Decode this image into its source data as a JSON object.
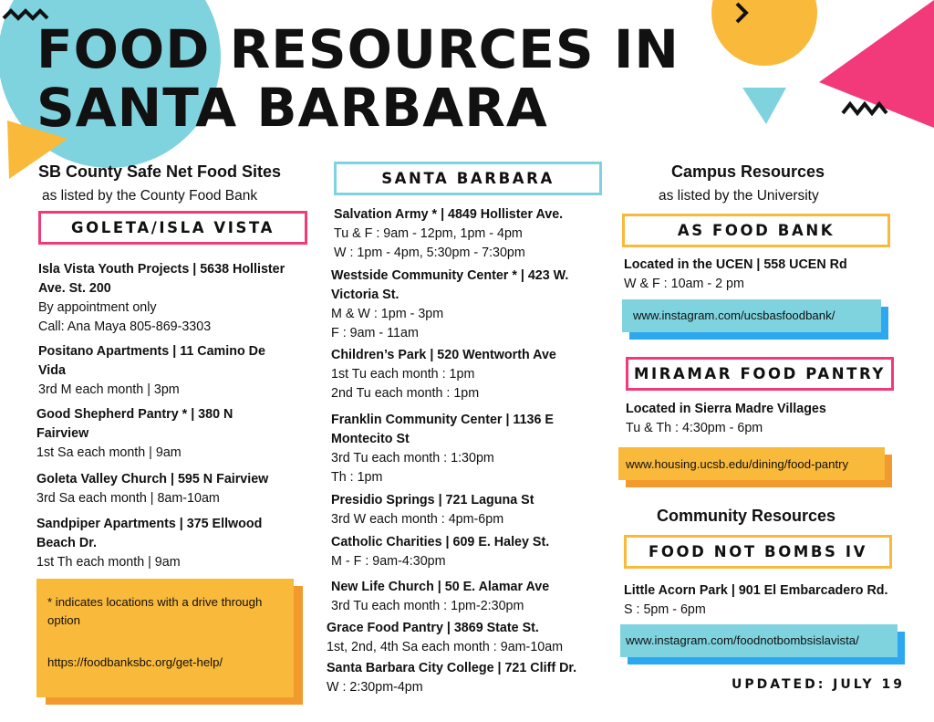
{
  "title": {
    "line1": "FOOD RESOURCES IN",
    "line2": "SANTA BARBARA"
  },
  "colors": {
    "pink": "#F2397A",
    "teal": "#7FD3DF",
    "gold": "#F9B93A",
    "blue": "#2BA8F0"
  },
  "left": {
    "heading": "SB County Safe Net Food Sites",
    "subheading": "as listed by the County Food Bank",
    "box": "GOLETA/ISLA VISTA",
    "entries": [
      {
        "name": "Isla Vista Youth Projects | 5638 Hollister Ave. St. 200",
        "l1": "By appointment only",
        "l2": "Call: Ana Maya 805-869-3303"
      },
      {
        "name": "Positano Apartments | 11 Camino De Vida",
        "l1": "3rd M each month | 3pm"
      },
      {
        "name": "Good Shepherd Pantry * | 380 N Fairview",
        "l1": "1st Sa each month | 9am"
      },
      {
        "name": "Goleta Valley Church | 595 N Fairview",
        "l1": "3rd Sa each month | 8am-10am"
      },
      {
        "name": "Sandpiper Apartments | 375 Ellwood Beach Dr.",
        "l1": "1st Th each month | 9am"
      }
    ],
    "note": "* indicates locations with a drive through option",
    "link": "https://foodbanksbc.org/get-help/"
  },
  "middle": {
    "box": "SANTA BARBARA",
    "entries": [
      {
        "name": "Salvation Army * | 4849 Hollister Ave.",
        "l1": "Tu & F : 9am - 12pm, 1pm - 4pm",
        "l2": "W : 1pm - 4pm, 5:30pm - 7:30pm"
      },
      {
        "name": "Westside Community Center * | 423 W. Victoria St.",
        "l1": "M & W : 1pm - 3pm",
        "l2": "F : 9am - 11am"
      },
      {
        "name": "Children’s Park | 520 Wentworth Ave",
        "l1": "1st Tu each month : 1pm",
        "l2": "2nd Tu each month : 1pm"
      },
      {
        "name": "Franklin Community Center | 1136 E Montecito St",
        "l1": "3rd Tu each month : 1:30pm",
        "l2": "Th : 1pm"
      },
      {
        "name": "Presidio Springs | 721 Laguna St",
        "l1": "3rd W each month : 4pm-6pm"
      },
      {
        "name": "Catholic Charities | 609 E. Haley St.",
        "l1": "M - F : 9am-4:30pm"
      },
      {
        "name": "New Life Church | 50 E. Alamar Ave",
        "l1": "3rd Tu each month : 1pm-2:30pm"
      },
      {
        "name": "Grace Food Pantry | 3869 State St.",
        "l1": "1st, 2nd, 4th Sa each month : 9am-10am"
      },
      {
        "name": "Santa Barbara City College | 721 Cliff Dr.",
        "l1": "W : 2:30pm-4pm"
      }
    ]
  },
  "right": {
    "heading": "Campus Resources",
    "subheading": "as listed by the University",
    "as_food_bank": {
      "box": "AS FOOD BANK",
      "name": "Located in the UCEN | 558 UCEN Rd",
      "l1": "W & F : 10am - 2 pm",
      "link": "www.instagram.com/ucsbasfoodbank/"
    },
    "miramar": {
      "box": "MIRAMAR FOOD PANTRY",
      "name": "Located in Sierra Madre Villages",
      "l1": "Tu & Th : 4:30pm - 6pm",
      "link": "www.housing.ucsb.edu/dining/food-pantry"
    },
    "community_heading": "Community Resources",
    "fnb": {
      "box": "FOOD NOT BOMBS IV",
      "name": "Little Acorn Park | 901 El Embarcadero Rd.",
      "l1": "S : 5pm - 6pm",
      "link": "www.instagram.com/foodnotbombsislavista/"
    }
  },
  "updated": "UPDATED: JULY 19"
}
